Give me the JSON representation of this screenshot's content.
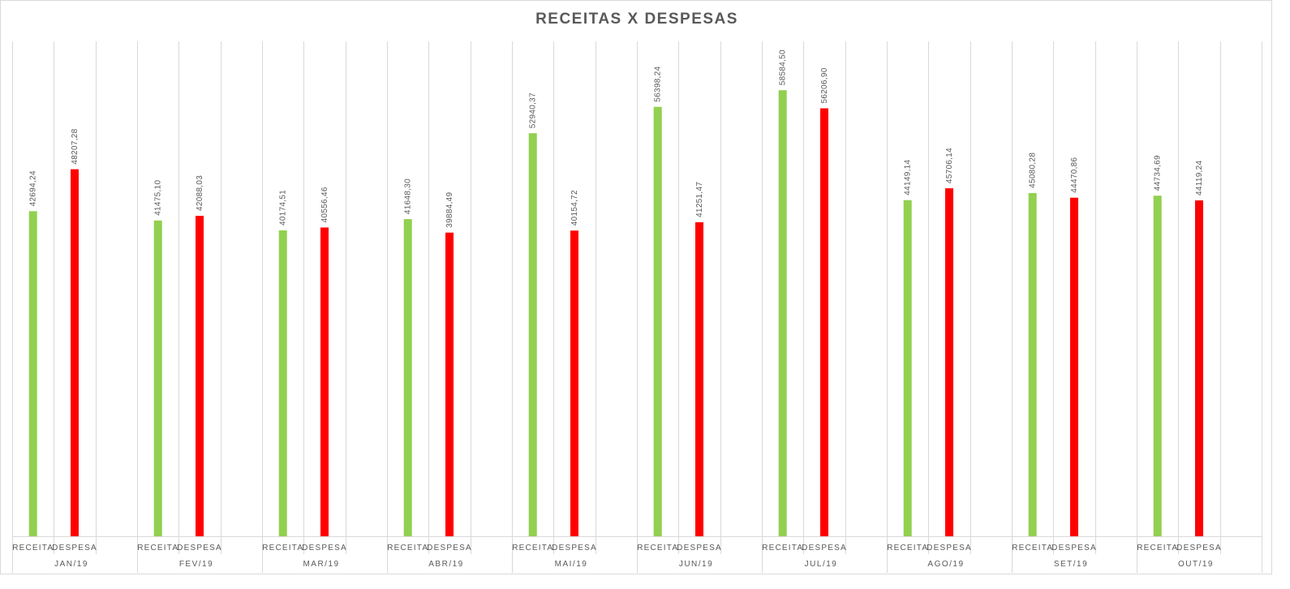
{
  "chart_data": {
    "type": "bar",
    "title": "RECEITAS X DESPESAS",
    "xlabel": "",
    "ylabel": "",
    "ylim": [
      0,
      65000
    ],
    "grid": "vertical",
    "legend": "none",
    "colors": {
      "RECEITA": "#92d050",
      "DESPESA": "#ff0000"
    },
    "groups": [
      {
        "month": "JAN/19",
        "bars": [
          {
            "category": "RECEITA",
            "value": 42694.24,
            "label": "42694,24"
          },
          {
            "category": "DESPESA",
            "value": 48207.28,
            "label": "48207,28"
          }
        ]
      },
      {
        "month": "FEV/19",
        "bars": [
          {
            "category": "RECEITA",
            "value": 41475.1,
            "label": "41475,10"
          },
          {
            "category": "DESPESA",
            "value": 42088.03,
            "label": "42088,03"
          }
        ]
      },
      {
        "month": "MAR/19",
        "bars": [
          {
            "category": "RECEITA",
            "value": 40174.51,
            "label": "40174,51"
          },
          {
            "category": "DESPESA",
            "value": 40556.46,
            "label": "40556,46"
          }
        ]
      },
      {
        "month": "ABR/19",
        "bars": [
          {
            "category": "RECEITA",
            "value": 41648.3,
            "label": "41648,30"
          },
          {
            "category": "DESPESA",
            "value": 39884.49,
            "label": "39884,49"
          }
        ]
      },
      {
        "month": "MAI/19",
        "bars": [
          {
            "category": "RECEITA",
            "value": 52940.37,
            "label": "52940,37"
          },
          {
            "category": "DESPESA",
            "value": 40154.72,
            "label": "40154,72"
          }
        ]
      },
      {
        "month": "JUN/19",
        "bars": [
          {
            "category": "RECEITA",
            "value": 56398.24,
            "label": "56398,24"
          },
          {
            "category": "DESPESA",
            "value": 41251.47,
            "label": "41251,47"
          }
        ]
      },
      {
        "month": "JUL/19",
        "bars": [
          {
            "category": "RECEITA",
            "value": 58584.5,
            "label": "58584,50"
          },
          {
            "category": "DESPESA",
            "value": 56206.9,
            "label": "56206,90"
          }
        ]
      },
      {
        "month": "AGO/19",
        "bars": [
          {
            "category": "RECEITA",
            "value": 44149.14,
            "label": "44149,14"
          },
          {
            "category": "DESPESA",
            "value": 45706.14,
            "label": "45706,14"
          }
        ]
      },
      {
        "month": "SET/19",
        "bars": [
          {
            "category": "RECEITA",
            "value": 45080.28,
            "label": "45080,28"
          },
          {
            "category": "DESPESA",
            "value": 44470.86,
            "label": "44470,86"
          }
        ]
      },
      {
        "month": "OUT/19",
        "bars": [
          {
            "category": "RECEITA",
            "value": 44734.69,
            "label": "44734,69"
          },
          {
            "category": "DESPESA",
            "value": 44119.24,
            "label": "44119,24"
          }
        ]
      }
    ]
  }
}
